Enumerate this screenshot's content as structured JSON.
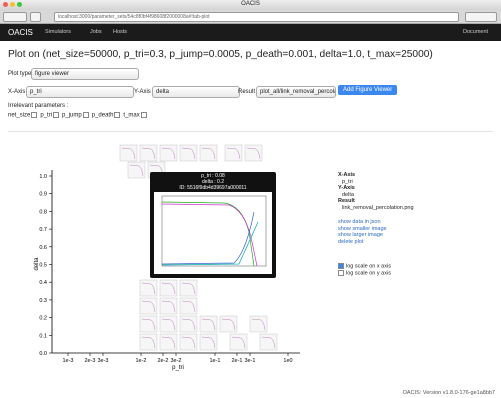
{
  "window": {
    "title": "OACIS",
    "url": "localhost:3000/parameter_sets/54c8f0bf4f98608f2000008a#!tab-plot"
  },
  "nav": {
    "brand": "OACIS",
    "items": [
      "Simulators",
      "Jobs",
      "Hosts"
    ],
    "right": "Document"
  },
  "heading": "Plot on (net_size=50000, p_tri=0.3, p_jump=0.0005, p_death=0.001, delta=1.0, t_max=25000)",
  "form": {
    "plot_type_label": "Plot type",
    "plot_type": "figure viewer",
    "x_axis_label": "X-Axis",
    "x_axis": "p_tri",
    "y_axis_label": "Y-Axis",
    "y_axis": "delta",
    "result_label": "Result",
    "result": "plot_all/link_removal_percola",
    "button": "Add Figure Viewer",
    "irrelevant_label": "Irrelevant parameters :",
    "irrelevant": [
      "net_size",
      "p_tri",
      "p_jump",
      "p_death",
      "t_max"
    ]
  },
  "plot": {
    "y_label": "delta",
    "x_label": "p_tri",
    "y_ticks": [
      "0.0",
      "0.1",
      "0.2",
      "0.3",
      "0.4",
      "0.5",
      "0.6",
      "0.7",
      "0.8",
      "0.9",
      "1.0"
    ],
    "x_ticks": [
      "1e-3",
      "2e-3",
      "3e-3",
      "1e-2",
      "2e-2",
      "3e-2",
      "1e-1",
      "2e-1",
      "3e-1",
      "1e0"
    ],
    "popup": [
      "p_tri : 0.08",
      "delta : 0.2",
      "ID: 5516f9db4d39697a000011"
    ]
  },
  "side": {
    "x_axis_label": "X-Axis",
    "x_axis": "p_tri",
    "y_axis_label": "Y-Axis",
    "y_axis": "delta",
    "result_label": "Result",
    "result": "link_removal_percolation.png",
    "links": [
      "show data in json",
      "show smaller image",
      "show larger image",
      "delete plot"
    ],
    "options": [
      "log scale on x axis",
      "log scale on y axis"
    ]
  },
  "footer": "OACIS: Version v1.8.0-176-ge1a8bb7"
}
